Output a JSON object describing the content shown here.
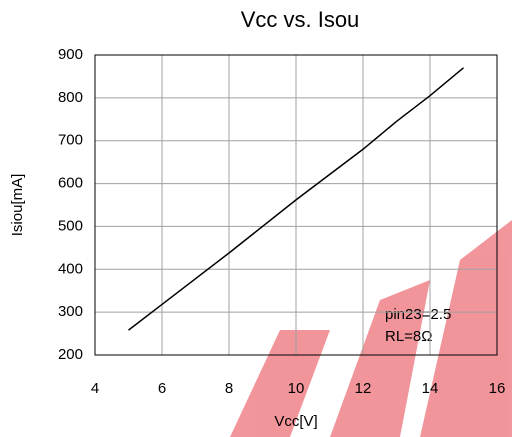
{
  "chart_data": {
    "type": "line",
    "title": "Vcc vs. Isou",
    "x_label": "Vcc[V]",
    "y_label": "Isiou[mA]",
    "x": [
      5,
      6,
      8,
      10,
      12,
      13,
      14,
      15
    ],
    "series": [
      {
        "name": "Isou",
        "color": "#000000",
        "values": [
          258,
          318,
          438,
          562,
          680,
          745,
          805,
          870
        ]
      }
    ],
    "xlim": [
      4,
      16
    ],
    "xticks": [
      4,
      6,
      8,
      10,
      12,
      14,
      16
    ],
    "ylim": [
      200,
      900
    ],
    "yticks": [
      200,
      300,
      400,
      500,
      600,
      700,
      800,
      900
    ],
    "grid": true,
    "annotations": [
      "pin23=2.5",
      "RL=8Ω"
    ]
  }
}
